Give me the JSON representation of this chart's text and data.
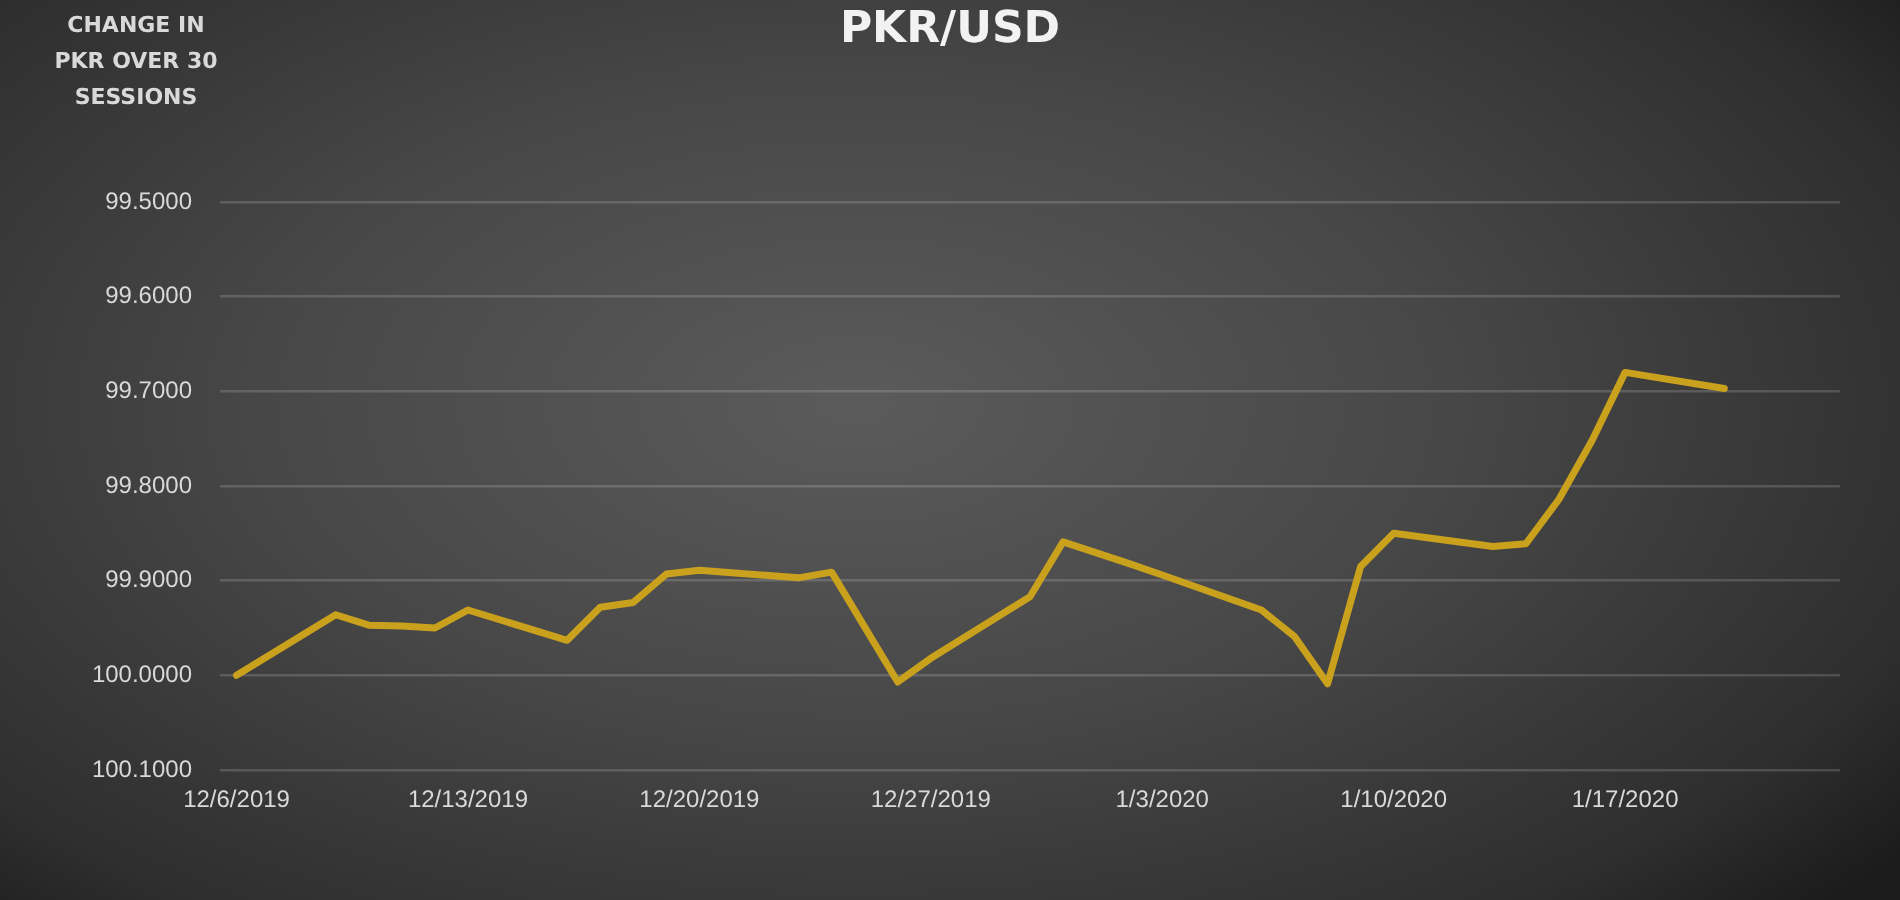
{
  "chart_data": {
    "type": "line",
    "title": "PKR/USD",
    "ylabel": "CHANGE IN PKR OVER 30 SESSIONS",
    "x": [
      "2019-12-06",
      "2019-12-09",
      "2019-12-10",
      "2019-12-11",
      "2019-12-12",
      "2019-12-13",
      "2019-12-16",
      "2019-12-17",
      "2019-12-18",
      "2019-12-19",
      "2019-12-20",
      "2019-12-23",
      "2019-12-24",
      "2019-12-26",
      "2019-12-27",
      "2019-12-30",
      "2019-12-31",
      "2020-01-02",
      "2020-01-03",
      "2020-01-06",
      "2020-01-07",
      "2020-01-08",
      "2020-01-09",
      "2020-01-10",
      "2020-01-13",
      "2020-01-14",
      "2020-01-15",
      "2020-01-16",
      "2020-01-17",
      "2020-01-20"
    ],
    "values": [
      100.0,
      99.936,
      99.947,
      99.948,
      99.95,
      99.931,
      99.963,
      99.928,
      99.923,
      99.893,
      99.889,
      99.897,
      99.891,
      100.007,
      99.982,
      99.917,
      99.859,
      99.882,
      99.894,
      99.931,
      99.959,
      100.009,
      99.885,
      99.85,
      99.864,
      99.861,
      99.814,
      99.752,
      99.68,
      99.697
    ],
    "color": "#c9a11c",
    "xlim": [
      "2019-12-05T12:00",
      "2020-01-23T12:00"
    ],
    "xticks": [
      {
        "value": "2019-12-06",
        "label": "12/6/2019"
      },
      {
        "value": "2019-12-13",
        "label": "12/13/2019"
      },
      {
        "value": "2019-12-20",
        "label": "12/20/2019"
      },
      {
        "value": "2019-12-27",
        "label": "12/27/2019"
      },
      {
        "value": "2020-01-03",
        "label": "1/3/2020"
      },
      {
        "value": "2020-01-10",
        "label": "1/10/2020"
      },
      {
        "value": "2020-01-17",
        "label": "1/17/2020"
      }
    ],
    "ylim": [
      100.1,
      99.5
    ],
    "yticks": [
      {
        "value": 99.5,
        "label": "99.5000"
      },
      {
        "value": 99.6,
        "label": "99.6000"
      },
      {
        "value": 99.7,
        "label": "99.7000"
      },
      {
        "value": 99.8,
        "label": "99.8000"
      },
      {
        "value": 99.9,
        "label": "99.9000"
      },
      {
        "value": 100.0,
        "label": "100.0000"
      },
      {
        "value": 100.1,
        "label": "100.1000"
      }
    ],
    "grid": "y",
    "marker": "none"
  }
}
